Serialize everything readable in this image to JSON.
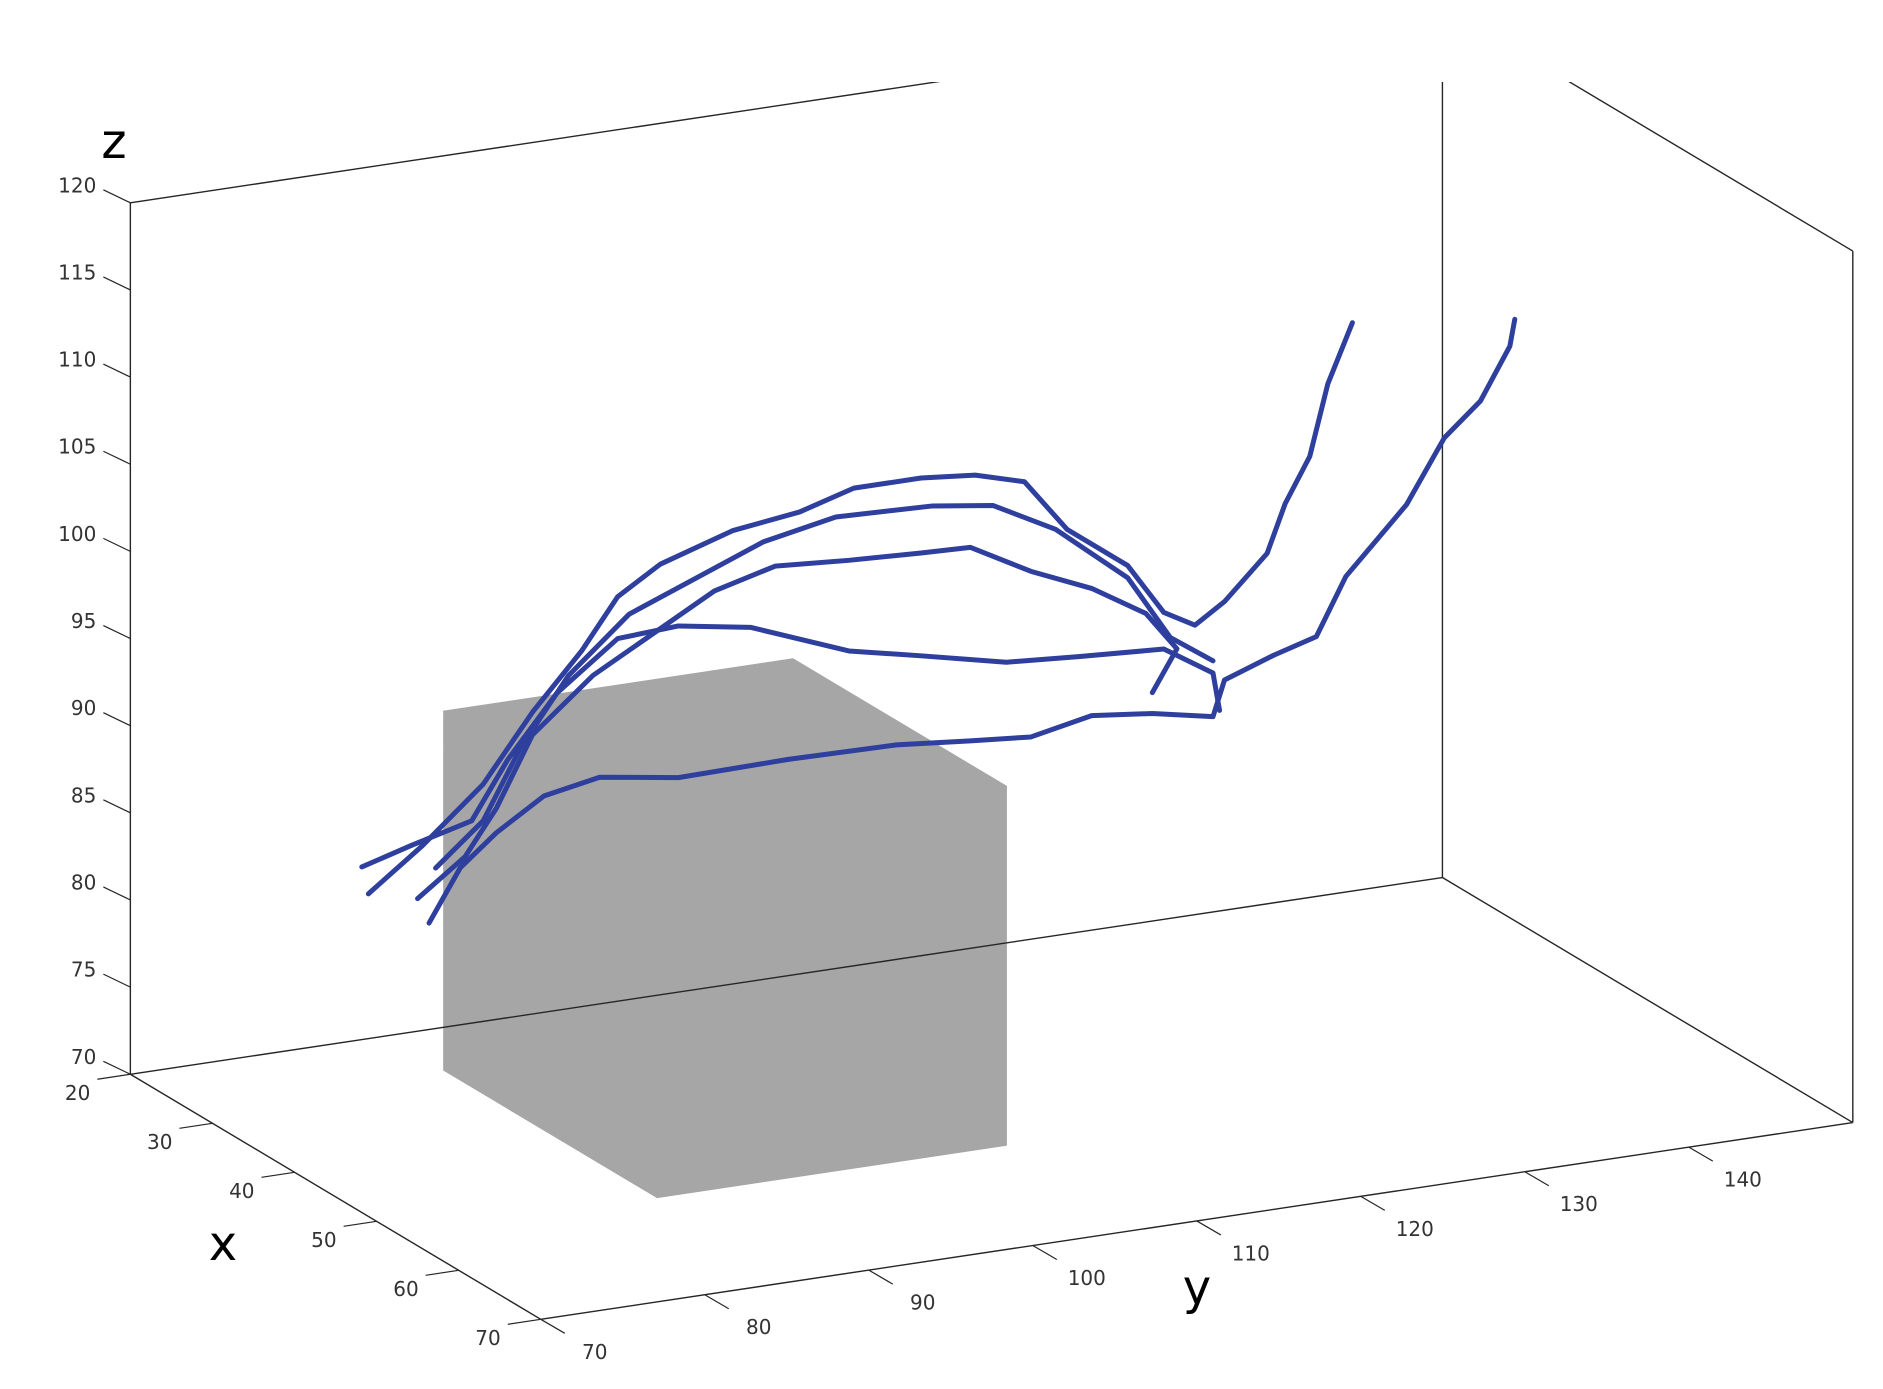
{
  "chart_data": {
    "type": "line3d",
    "xlabel": "x",
    "ylabel": "y",
    "zlabel": "z",
    "xlim": [
      20,
      70
    ],
    "ylim": [
      70,
      150
    ],
    "zlim": [
      70,
      120
    ],
    "xticks": [
      20,
      30,
      40,
      50,
      60,
      70
    ],
    "yticks": [
      70,
      80,
      90,
      100,
      110,
      120,
      130,
      140
    ],
    "zticks": [
      70,
      75,
      80,
      85,
      90,
      95,
      100,
      105,
      110,
      115,
      120
    ],
    "box": {
      "x": [
        27,
        53
      ],
      "y": [
        85.6,
        106.9
      ],
      "z": [
        70,
        90.6
      ],
      "color": "#a6a6a6"
    },
    "series": [
      {
        "color": "#2e3f9e",
        "x": 45,
        "y": [
          72.0,
          75.3,
          79.0,
          82.0,
          85.0,
          87.2,
          89.8,
          94.2,
          98.3,
          101.6,
          105.7,
          109.0,
          112.0,
          114.6,
          118.3,
          120.5,
          122.4,
          124.2,
          126.8,
          127.9,
          129.4,
          130.5,
          132.0
        ],
        "z": [
          87.1,
          89.4,
          92.4,
          96.1,
          99.2,
          102.0,
          103.5,
          104.8,
          105.3,
          106.2,
          106.2,
          105.9,
          105.1,
          102.0,
          99.4,
          96.4,
          95.4,
          96.5,
          98.9,
          101.6,
          104.1,
          108.1,
          111.4
        ]
      },
      {
        "color": "#2e3f9e",
        "x": 45,
        "y": [
          75.7,
          77.6,
          79.8,
          82.7,
          86.1,
          90.9,
          97.6,
          104.2,
          108.7,
          112.4,
          116.1,
          119.8,
          123.5,
          124.2,
          127.2,
          129.8,
          131.6,
          135.3,
          137.6,
          139.8,
          141.6,
          141.9
        ],
        "z": [
          84.9,
          87.8,
          89.5,
          91.2,
          91.8,
          91.1,
          91.2,
          91.1,
          90.7,
          90.4,
          91.1,
          90.7,
          90.0,
          92.0,
          93.0,
          93.7,
          96.9,
          100.5,
          104.0,
          105.8,
          108.7,
          110.2
        ]
      },
      {
        "color": "#2e3f9e",
        "x": 45,
        "y": [
          71.6,
          74.6,
          78.3,
          80.5,
          83.5,
          87.2,
          90.9,
          95.3,
          101.3,
          105.7,
          110.9,
          115.3,
          120.5,
          123.5,
          123.9
        ],
        "z": [
          88.7,
          89.5,
          90.4,
          93.6,
          97.0,
          99.6,
          99.8,
          99.1,
          96.9,
          96.0,
          94.9,
          94.6,
          94.3,
          92.5,
          90.3
        ]
      },
      {
        "color": "#2e3f9e",
        "x": 45,
        "y": [
          75.0,
          77.9,
          79.8,
          82.0,
          85.7,
          89.4,
          93.1,
          96.8,
          101.3,
          105.7,
          108.7,
          112.4,
          116.1,
          119.4,
          121.3,
          119.8
        ],
        "z": [
          86.4,
          88.4,
          90.9,
          94.8,
          97.7,
          99.6,
          101.5,
          102.4,
          102.1,
          101.9,
          101.8,
          99.9,
          98.4,
          96.5,
          94.2,
          91.9
        ]
      },
      {
        "color": "#2e3f9e",
        "x": 45,
        "y": [
          76.1,
          79.0,
          81.3,
          84.2,
          87.9,
          92.0,
          96.1,
          100.5,
          106.4,
          110.1,
          113.9,
          118.3,
          120.9,
          123.5
        ],
        "z": [
          88.0,
          90.3,
          94.2,
          97.9,
          100.9,
          102.4,
          103.9,
          104.7,
          104.5,
          104.0,
          102.1,
          98.7,
          94.9,
          93.2
        ]
      }
    ]
  }
}
